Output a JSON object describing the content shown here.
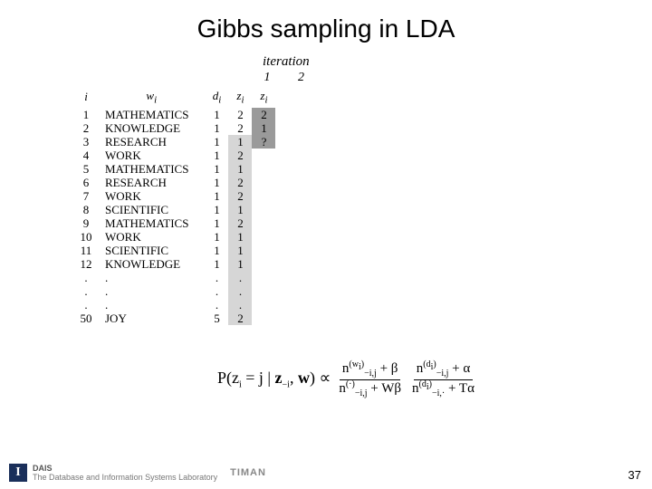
{
  "title": "Gibbs sampling in LDA",
  "iteration_header": "iteration",
  "iter_labels": {
    "one": "1",
    "two": "2"
  },
  "table": {
    "headers": {
      "i": "i",
      "w": "w",
      "wsub": "i",
      "d": "d",
      "dsub": "i",
      "z": "z",
      "zsub": "i",
      "z2": "z",
      "z2sub": "i"
    },
    "rows": [
      {
        "i": "1",
        "w": "MATHEMATICS",
        "d": "1",
        "z1": "2",
        "z2": "2",
        "z1shade": "",
        "z2shade": "shade-dark"
      },
      {
        "i": "2",
        "w": "KNOWLEDGE",
        "d": "1",
        "z1": "2",
        "z2": "1",
        "z1shade": "",
        "z2shade": "shade-dark"
      },
      {
        "i": "3",
        "w": "RESEARCH",
        "d": "1",
        "z1": "1",
        "z2": "?",
        "z1shade": "shade-light",
        "z2shade": "shade-dark"
      },
      {
        "i": "4",
        "w": "WORK",
        "d": "1",
        "z1": "2",
        "z2": "",
        "z1shade": "shade-light",
        "z2shade": ""
      },
      {
        "i": "5",
        "w": "MATHEMATICS",
        "d": "1",
        "z1": "1",
        "z2": "",
        "z1shade": "shade-light",
        "z2shade": ""
      },
      {
        "i": "6",
        "w": "RESEARCH",
        "d": "1",
        "z1": "2",
        "z2": "",
        "z1shade": "shade-light",
        "z2shade": ""
      },
      {
        "i": "7",
        "w": "WORK",
        "d": "1",
        "z1": "2",
        "z2": "",
        "z1shade": "shade-light",
        "z2shade": ""
      },
      {
        "i": "8",
        "w": "SCIENTIFIC",
        "d": "1",
        "z1": "1",
        "z2": "",
        "z1shade": "shade-light",
        "z2shade": ""
      },
      {
        "i": "9",
        "w": "MATHEMATICS",
        "d": "1",
        "z1": "2",
        "z2": "",
        "z1shade": "shade-light",
        "z2shade": ""
      },
      {
        "i": "10",
        "w": "WORK",
        "d": "1",
        "z1": "1",
        "z2": "",
        "z1shade": "shade-light",
        "z2shade": ""
      },
      {
        "i": "11",
        "w": "SCIENTIFIC",
        "d": "1",
        "z1": "1",
        "z2": "",
        "z1shade": "shade-light",
        "z2shade": ""
      },
      {
        "i": "12",
        "w": "KNOWLEDGE",
        "d": "1",
        "z1": "1",
        "z2": "",
        "z1shade": "shade-light",
        "z2shade": ""
      },
      {
        "i": ".",
        "w": ".",
        "d": ".",
        "z1": ".",
        "z2": "",
        "z1shade": "shade-light",
        "z2shade": ""
      },
      {
        "i": ".",
        "w": ".",
        "d": ".",
        "z1": ".",
        "z2": "",
        "z1shade": "shade-light",
        "z2shade": ""
      },
      {
        "i": ".",
        "w": ".",
        "d": ".",
        "z1": ".",
        "z2": "",
        "z1shade": "shade-light",
        "z2shade": ""
      },
      {
        "i": "50",
        "w": "JOY",
        "d": "5",
        "z1": "2",
        "z2": "",
        "z1shade": "shade-light",
        "z2shade": ""
      }
    ]
  },
  "formula": {
    "lhs_text": "P(z",
    "lhs_sub": "i",
    "lhs_eq": " = j | ",
    "lhs_z": "z",
    "lhs_zsub": "−i",
    "lhs_comma": ", ",
    "lhs_w": "w",
    "lhs_close": ") ∝",
    "frac1_num_n": "n",
    "frac1_num_sup": "(w",
    "frac1_num_sup2": "i",
    "frac1_num_sup3": ")",
    "frac1_num_sub": "−i,j",
    "frac1_num_plus": " + β",
    "frac1_den_n": "n",
    "frac1_den_sup": "(·)",
    "frac1_den_sub": "−i,j",
    "frac1_den_plus": " + Wβ",
    "frac2_num_n": "n",
    "frac2_num_sup": "(d",
    "frac2_num_sup2": "i",
    "frac2_num_sup3": ")",
    "frac2_num_sub": "−i,j",
    "frac2_num_plus": " + α",
    "frac2_den_n": "n",
    "frac2_den_sup": "(d",
    "frac2_den_sup2": "i",
    "frac2_den_sup3": ")",
    "frac2_den_sub": "−i,·",
    "frac2_den_plus": " + Tα"
  },
  "footer": {
    "logo": "I",
    "lab1": "DAIS",
    "lab2": "The Database and Information Systems Laboratory",
    "timan": "TIMAN"
  },
  "page_number": "37"
}
